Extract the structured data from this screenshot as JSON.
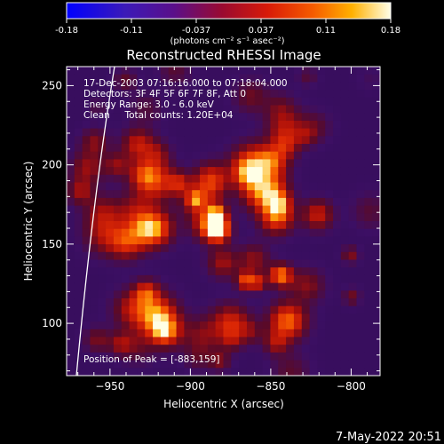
{
  "chart_data": {
    "type": "heatmap",
    "title": "Reconstructed RHESSI Image",
    "xlabel": "Heliocentric X (arcsec)",
    "ylabel": "Heliocentric Y (arcsec)",
    "xlim": [
      -977,
      -782
    ],
    "ylim": [
      67,
      262
    ],
    "x_ticks": [
      -950,
      -900,
      -850,
      -800
    ],
    "y_ticks": [
      100,
      150,
      200,
      250
    ],
    "colorbar": {
      "min": -0.18,
      "max": 0.18,
      "tick_labels": [
        "-0.18",
        "-0.11",
        "-0.037",
        "0.037",
        "0.11",
        "0.18"
      ],
      "units": "(photons cm⁻² s⁻¹ asec⁻²)"
    },
    "annotations": [
      "17-Dec-2003 07:16:16.000 to 07:18:04.000",
      "Detectors: 3F 4F 5F 6F 7F 8F, Att 0",
      "Energy Range: 3.0 - 6.0 keV",
      "Clean     Total counts: 1.20E+04"
    ],
    "peak_label": "Position of Peak = [-883,159]",
    "peak": {
      "x": -883,
      "y": 159
    },
    "timestamp": "7-May-2022 20:51",
    "grid": false,
    "colormap": "purple-red-yellow-white"
  }
}
